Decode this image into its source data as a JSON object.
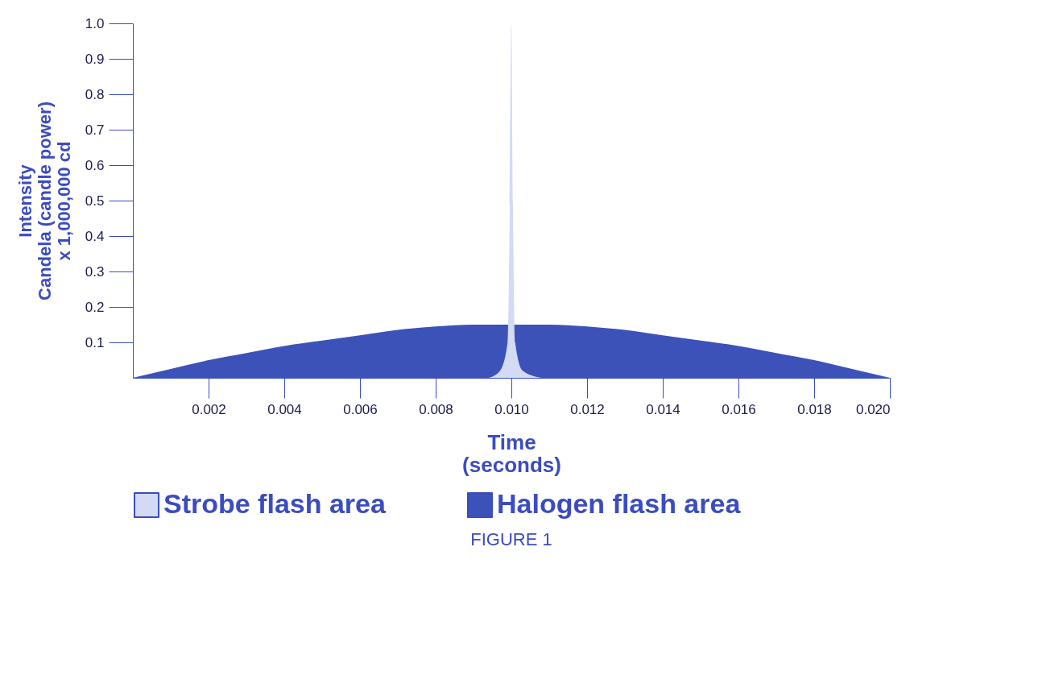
{
  "chart_data": {
    "type": "area",
    "xlabel": "Time\n(seconds)",
    "ylabel": "Intensity\nCandela (candle power)\nx 1,000,000 cd",
    "annotations": [
      "FIGURE 1"
    ],
    "xlim": [
      0,
      0.02
    ],
    "ylim": [
      0,
      1
    ],
    "xticks": [
      0.002,
      0.004,
      0.006,
      0.008,
      {
        "value": 0.01,
        "label": "0.010"
      },
      0.012,
      0.014,
      0.016,
      0.018,
      {
        "value": 0.02,
        "label": "0.020"
      }
    ],
    "yticks": [
      0.1,
      0.2,
      0.3,
      0.4,
      0.5,
      0.6,
      0.7,
      0.8,
      0.9,
      {
        "value": 1,
        "label": "1.0"
      }
    ],
    "grid": false,
    "legend": "bottom",
    "series": [
      {
        "name": "Halogen flash area",
        "color": "#3d52b8",
        "x": [
          0,
          0.001,
          0.002,
          0.003,
          0.004,
          0.005,
          0.006,
          0.007,
          0.008,
          0.009,
          0.011,
          0.012,
          0.013,
          0.014,
          0.015,
          0.016,
          0.017,
          0.018,
          0.019,
          0.02
        ],
        "values": [
          0,
          0.025,
          0.05,
          0.07,
          0.09,
          0.105,
          0.12,
          0.135,
          0.145,
          0.15,
          0.15,
          0.145,
          0.135,
          0.12,
          0.105,
          0.09,
          0.07,
          0.05,
          0.025,
          0
        ]
      },
      {
        "name": "Strobe flash area",
        "color": "#d3daf3",
        "x": [
          0.0094,
          0.0097,
          0.0099,
          0.00995,
          0.01,
          0.01005,
          0.0101,
          0.0103,
          0.0108
        ],
        "values": [
          0,
          0.02,
          0.1,
          0.4,
          1,
          0.4,
          0.1,
          0.02,
          0
        ]
      }
    ]
  }
}
